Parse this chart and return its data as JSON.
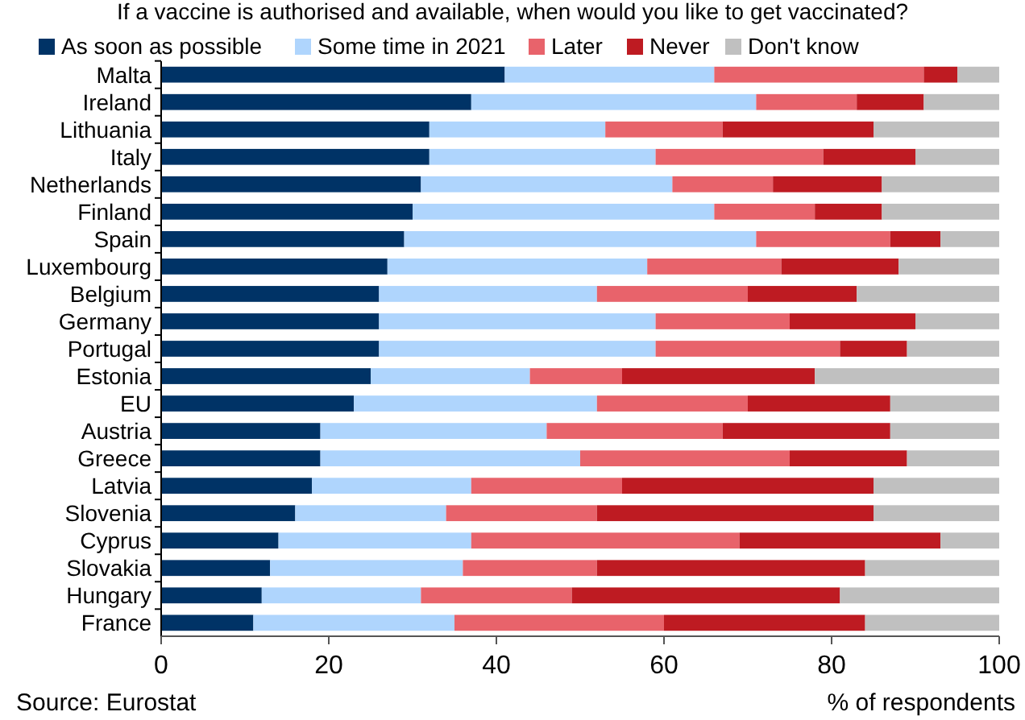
{
  "chart_data": {
    "type": "bar",
    "orientation": "horizontal",
    "stacked": true,
    "title": "If a vaccine is authorised and available, when would you like to get vaccinated?",
    "xlabel": "% of respondents",
    "annotations": [
      "Source: Eurostat"
    ],
    "legend": "top",
    "categories": [
      "Malta",
      "Ireland",
      "Lithuania",
      "Italy",
      "Netherlands",
      "Finland",
      "Spain",
      "Luxembourg",
      "Belgium",
      "Germany",
      "Portugal",
      "Estonia",
      "EU",
      "Austria",
      "Greece",
      "Latvia",
      "Slovenia",
      "Cyprus",
      "Slovakia",
      "Hungary",
      "France"
    ],
    "series": [
      {
        "name": "As soon as possible",
        "color": "#003366",
        "values": [
          41,
          37,
          32,
          32,
          31,
          30,
          29,
          27,
          26,
          26,
          26,
          25,
          23,
          19,
          19,
          18,
          16,
          14,
          13,
          12,
          11
        ]
      },
      {
        "name": "Some time in 2021",
        "color": "#afd5fd",
        "values": [
          25,
          34,
          21,
          27,
          30,
          36,
          42,
          31,
          26,
          33,
          33,
          19,
          29,
          27,
          31,
          19,
          18,
          23,
          23,
          19,
          24
        ]
      },
      {
        "name": "Later",
        "color": "#e8636b",
        "values": [
          25,
          12,
          14,
          20,
          12,
          12,
          16,
          16,
          18,
          16,
          22,
          11,
          18,
          21,
          25,
          18,
          18,
          32,
          16,
          18,
          25
        ]
      },
      {
        "name": "Never",
        "color": "#be1b22",
        "values": [
          4,
          8,
          18,
          11,
          13,
          8,
          6,
          14,
          13,
          15,
          8,
          23,
          17,
          20,
          14,
          30,
          33,
          24,
          32,
          32,
          24
        ]
      },
      {
        "name": "Don't know",
        "color": "#c0c0c0",
        "values": [
          5,
          9,
          15,
          10,
          14,
          14,
          7,
          12,
          17,
          10,
          11,
          22,
          13,
          13,
          11,
          15,
          15,
          7,
          16,
          19,
          16
        ]
      }
    ],
    "xlim": [
      0,
      100
    ],
    "xticks": [
      0,
      20,
      40,
      60,
      80,
      100
    ]
  }
}
